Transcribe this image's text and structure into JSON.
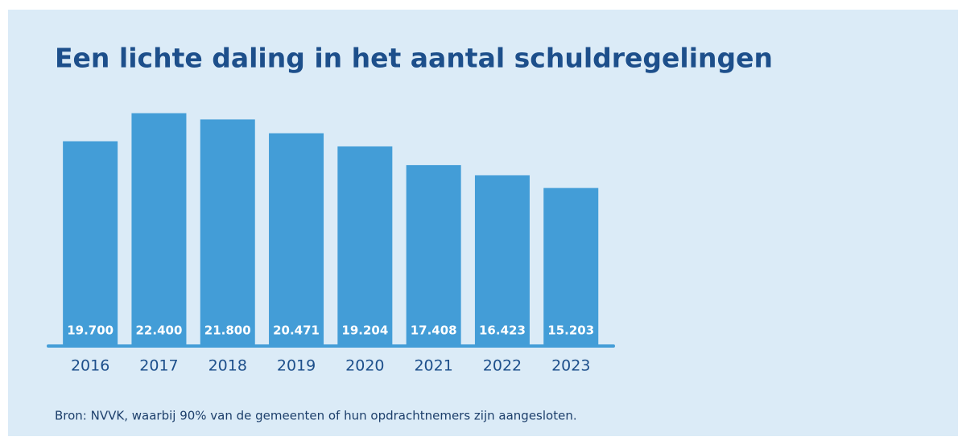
{
  "chart_data": {
    "type": "bar",
    "title": "Een lichte daling in het aantal schuldregelingen",
    "categories": [
      "2016",
      "2017",
      "2018",
      "2019",
      "2020",
      "2021",
      "2022",
      "2023"
    ],
    "values": [
      19700,
      22400,
      21800,
      20471,
      19204,
      17408,
      16423,
      15203
    ],
    "value_labels": [
      "19.700",
      "22.400",
      "21.800",
      "20.471",
      "19.204",
      "17.408",
      "16.423",
      "15.203"
    ],
    "color": "#439dd7",
    "ylim": [
      0,
      24000
    ],
    "note": "Bron: NVVK, waarbij 90% van de gemeenten of hun opdrachtnemers zijn aangesloten."
  }
}
